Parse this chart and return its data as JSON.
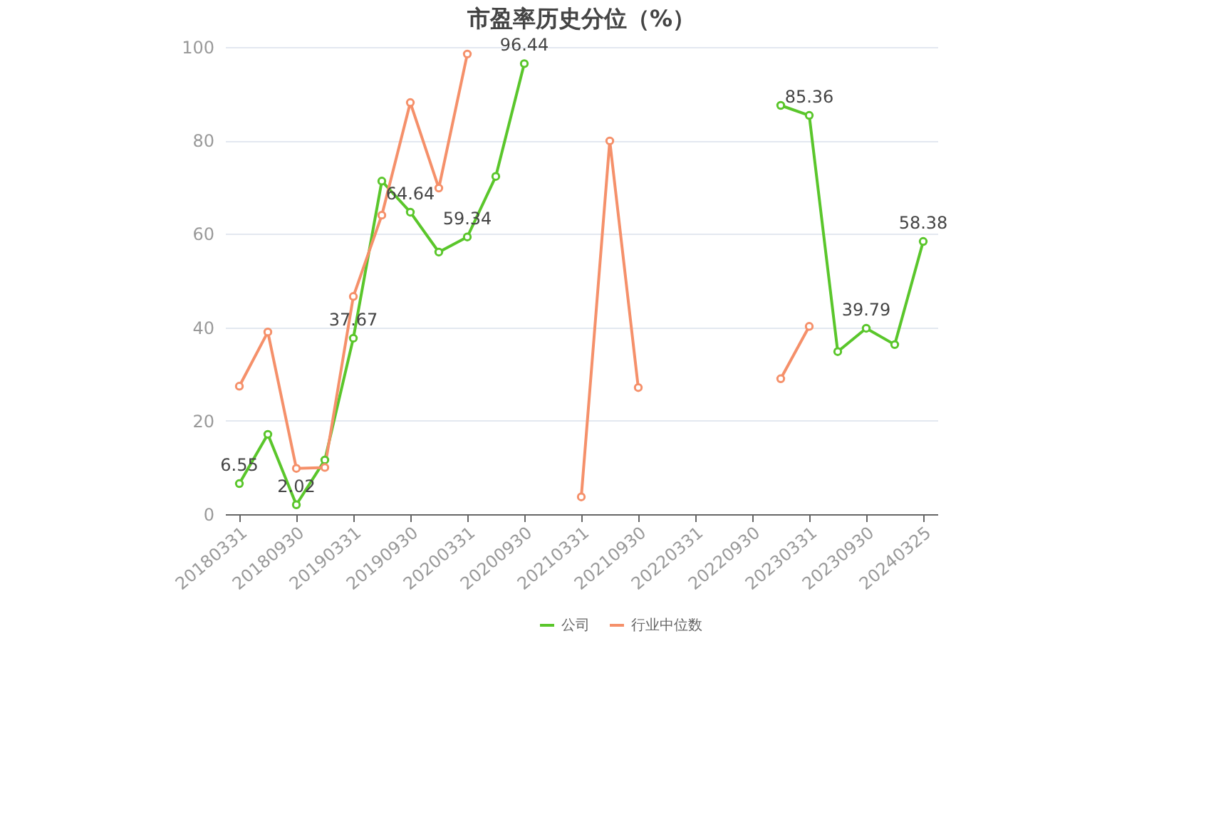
{
  "chart_data": {
    "type": "line",
    "title": "市盈率历史分位（%）",
    "categories": [
      "20180331",
      null,
      "20180930",
      null,
      "20190331",
      null,
      "20190930",
      null,
      "20200331",
      null,
      "20200930",
      null,
      "20210331",
      null,
      "20210930",
      null,
      "20220331",
      null,
      "20220930",
      null,
      "20230331",
      null,
      "20230930",
      null,
      "20240325"
    ],
    "series": [
      {
        "name": "公司",
        "color": "#5ac62b",
        "values": [
          6.55,
          17.1,
          2.02,
          11.6,
          37.67,
          71.3,
          64.64,
          56.1,
          59.34,
          72.3,
          96.44,
          null,
          null,
          null,
          null,
          null,
          null,
          null,
          null,
          87.5,
          85.36,
          34.8,
          39.79,
          36.3,
          58.38
        ],
        "value_labels": [
          "6.55",
          null,
          "2.02",
          null,
          "37.67",
          null,
          "64.64",
          null,
          "59.34",
          null,
          "96.44",
          null,
          null,
          null,
          null,
          null,
          null,
          null,
          null,
          null,
          "85.36",
          null,
          "39.79",
          null,
          "58.38"
        ]
      },
      {
        "name": "行业中位数",
        "color": "#f5906a",
        "values": [
          27.4,
          39.0,
          9.8,
          10.0,
          46.6,
          64.0,
          88.1,
          69.8,
          98.5,
          null,
          null,
          null,
          3.7,
          79.9,
          27.1,
          null,
          null,
          null,
          null,
          29.0,
          40.2,
          null,
          null,
          null,
          null
        ]
      }
    ],
    "ylim": [
      0,
      100
    ],
    "yticks": [
      0,
      20,
      40,
      60,
      80,
      100
    ],
    "grid": "y",
    "legend": "bottom",
    "marker": "circle",
    "line_style": "solid"
  }
}
